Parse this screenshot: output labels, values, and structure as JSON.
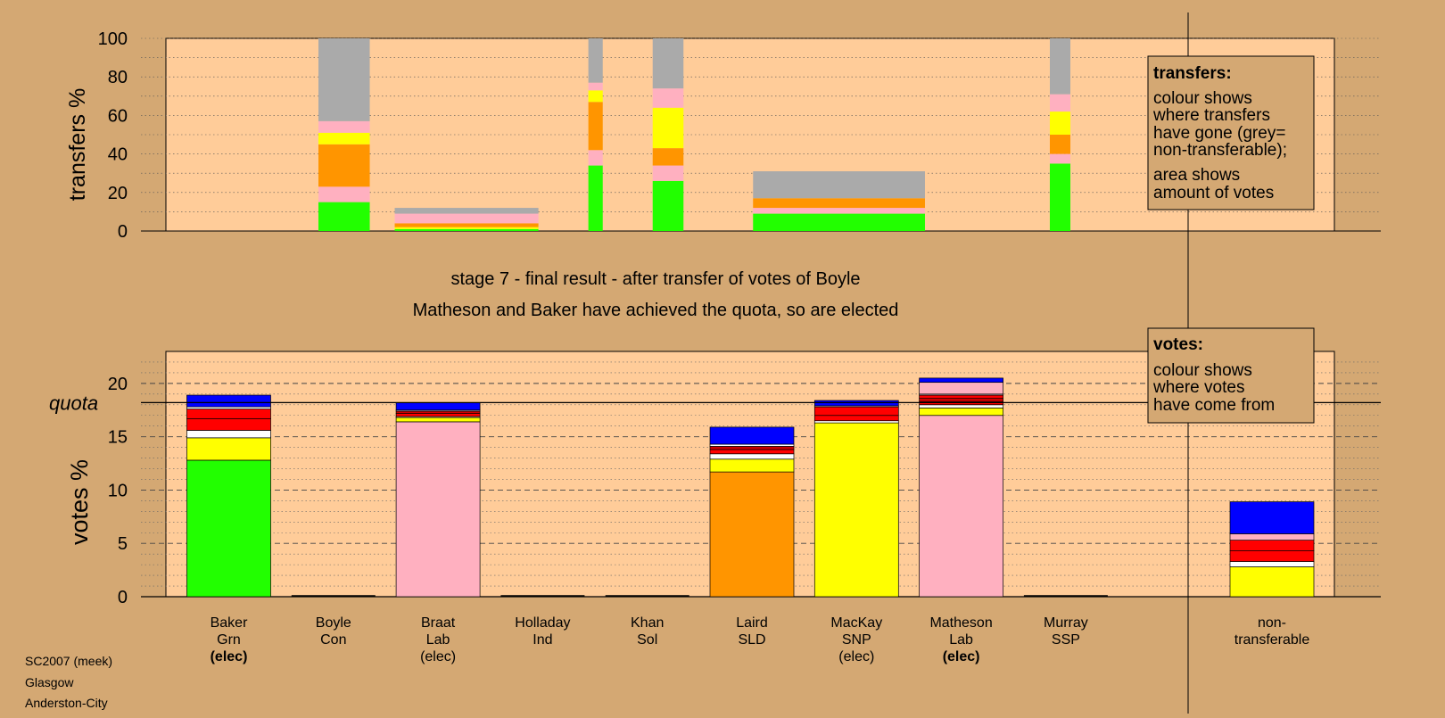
{
  "header": {
    "stage_line": "stage 7 - final result - after transfer of votes of Boyle",
    "result_line": "Matheson and Baker have achieved the quota, so are elected"
  },
  "footer": {
    "line1": "SC2007 (meek)",
    "line2": "Glasgow",
    "line3": "Anderston-City"
  },
  "colors": {
    "background": "#d4a873",
    "plot_bg": "#ffcc99",
    "green": "#22ff00",
    "pink": "#ffb0c0",
    "yellow": "#ffff00",
    "orange": "#ff9500",
    "white": "#ffffff",
    "red": "#ff0000",
    "dark_red": "#cc0000",
    "blue": "#0000ff",
    "grey": "#aaaaaa"
  },
  "chart_data": [
    {
      "type": "bar",
      "name": "transfers",
      "ylabel": "transfers %",
      "ylim": [
        0,
        100
      ],
      "yticks": [
        0,
        20,
        40,
        60,
        80,
        100
      ],
      "legend": {
        "title": "transfers:",
        "lines1": [
          "colour shows",
          "where transfers",
          "have gone (grey=",
          "non-transferable);"
        ],
        "lines2": [
          "area shows",
          "amount of votes"
        ]
      },
      "bars": [
        {
          "category": "Boyle",
          "width_share": 1.0,
          "segments": [
            {
              "color": "green",
              "value": 15
            },
            {
              "color": "pink",
              "value": 8
            },
            {
              "color": "orange",
              "value": 22
            },
            {
              "color": "yellow",
              "value": 6
            },
            {
              "color": "pink",
              "value": 6
            },
            {
              "color": "grey",
              "value": 43
            }
          ]
        },
        {
          "category": "Braat",
          "width_share": 2.8,
          "segments": [
            {
              "color": "green",
              "value": 1
            },
            {
              "color": "yellow",
              "value": 1
            },
            {
              "color": "orange",
              "value": 2
            },
            {
              "color": "pink",
              "value": 5
            },
            {
              "color": "grey",
              "value": 3
            }
          ]
        },
        {
          "category": "Holladay",
          "width_share": 0.28,
          "segments": [
            {
              "color": "green",
              "value": 34
            },
            {
              "color": "pink",
              "value": 8
            },
            {
              "color": "orange",
              "value": 25
            },
            {
              "color": "yellow",
              "value": 6
            },
            {
              "color": "pink",
              "value": 4
            },
            {
              "color": "grey",
              "value": 23
            }
          ]
        },
        {
          "category": "Khan",
          "width_share": 0.6,
          "segments": [
            {
              "color": "green",
              "value": 26
            },
            {
              "color": "pink",
              "value": 8
            },
            {
              "color": "orange",
              "value": 9
            },
            {
              "color": "yellow",
              "value": 21
            },
            {
              "color": "pink",
              "value": 10
            },
            {
              "color": "grey",
              "value": 26
            }
          ]
        },
        {
          "category": "MacKay",
          "width_share": 3.35,
          "segments": [
            {
              "color": "green",
              "value": 9
            },
            {
              "color": "pink",
              "value": 3
            },
            {
              "color": "orange",
              "value": 5
            },
            {
              "color": "grey",
              "value": 14
            }
          ]
        },
        {
          "category": "Murray",
          "width_share": 0.4,
          "segments": [
            {
              "color": "green",
              "value": 35
            },
            {
              "color": "pink",
              "value": 5
            },
            {
              "color": "orange",
              "value": 10
            },
            {
              "color": "yellow",
              "value": 12
            },
            {
              "color": "pink",
              "value": 9
            },
            {
              "color": "grey",
              "value": 29
            }
          ]
        }
      ]
    },
    {
      "type": "bar",
      "name": "votes",
      "ylabel": "votes %",
      "ylim": [
        0,
        23
      ],
      "yticks": [
        0,
        5,
        10,
        15,
        20
      ],
      "quota": 18.2,
      "quota_label": "quota",
      "legend": {
        "title": "votes:",
        "lines1": [
          "colour shows",
          "where votes",
          "have come from"
        ]
      },
      "categories": [
        {
          "name": "Baker",
          "party": "Grn",
          "status": "(elec)",
          "status_bold": true
        },
        {
          "name": "Boyle",
          "party": "Con",
          "status": "",
          "status_bold": false
        },
        {
          "name": "Braat",
          "party": "Lab",
          "status": "(elec)",
          "status_bold": false
        },
        {
          "name": "Holladay",
          "party": "Ind",
          "status": "",
          "status_bold": false
        },
        {
          "name": "Khan",
          "party": "Sol",
          "status": "",
          "status_bold": false
        },
        {
          "name": "Laird",
          "party": "SLD",
          "status": "",
          "status_bold": false
        },
        {
          "name": "MacKay",
          "party": "SNP",
          "status": "(elec)",
          "status_bold": false
        },
        {
          "name": "Matheson",
          "party": "Lab",
          "status": "(elec)",
          "status_bold": true
        },
        {
          "name": "Murray",
          "party": "SSP",
          "status": "",
          "status_bold": false
        }
      ],
      "nontransferable_label": [
        "non-",
        "transferable"
      ],
      "stacks": [
        [
          {
            "color": "green",
            "value": 12.8
          },
          {
            "color": "yellow",
            "value": 2.1
          },
          {
            "color": "white",
            "value": 0.7
          },
          {
            "color": "red",
            "value": 1.1
          },
          {
            "color": "red",
            "value": 0.9
          },
          {
            "color": "white",
            "value": 0.2
          },
          {
            "color": "blue",
            "value": 1.1
          }
        ],
        [],
        [
          {
            "color": "pink",
            "value": 16.4
          },
          {
            "color": "yellow",
            "value": 0.4
          },
          {
            "color": "white",
            "value": 0.1
          },
          {
            "color": "red",
            "value": 0.3
          },
          {
            "color": "dark_red",
            "value": 0.2
          },
          {
            "color": "white",
            "value": 0.1
          },
          {
            "color": "blue",
            "value": 0.7
          }
        ],
        [],
        [],
        [
          {
            "color": "orange",
            "value": 11.7
          },
          {
            "color": "yellow",
            "value": 1.2
          },
          {
            "color": "white",
            "value": 0.5
          },
          {
            "color": "red",
            "value": 0.4
          },
          {
            "color": "dark_red",
            "value": 0.3
          },
          {
            "color": "white",
            "value": 0.2
          },
          {
            "color": "blue",
            "value": 1.6
          }
        ],
        [
          {
            "color": "yellow",
            "value": 16.3
          },
          {
            "color": "white",
            "value": 0.2
          },
          {
            "color": "red",
            "value": 0.5
          },
          {
            "color": "red",
            "value": 0.8
          },
          {
            "color": "white",
            "value": 0.1
          },
          {
            "color": "blue",
            "value": 0.5
          }
        ],
        [
          {
            "color": "pink",
            "value": 17.0
          },
          {
            "color": "yellow",
            "value": 0.7
          },
          {
            "color": "white",
            "value": 0.3
          },
          {
            "color": "red",
            "value": 0.3
          },
          {
            "color": "dark_red",
            "value": 0.3
          },
          {
            "color": "red",
            "value": 0.3
          },
          {
            "color": "white",
            "value": 0.1
          },
          {
            "color": "pink",
            "value": 1.1
          },
          {
            "color": "blue",
            "value": 0.4
          }
        ],
        []
      ],
      "nontransferable_stack": [
        {
          "color": "yellow",
          "value": 2.8
        },
        {
          "color": "white",
          "value": 0.5
        },
        {
          "color": "red",
          "value": 1.0
        },
        {
          "color": "red",
          "value": 1.0
        },
        {
          "color": "pink",
          "value": 0.6
        },
        {
          "color": "blue",
          "value": 3.0
        }
      ]
    }
  ]
}
